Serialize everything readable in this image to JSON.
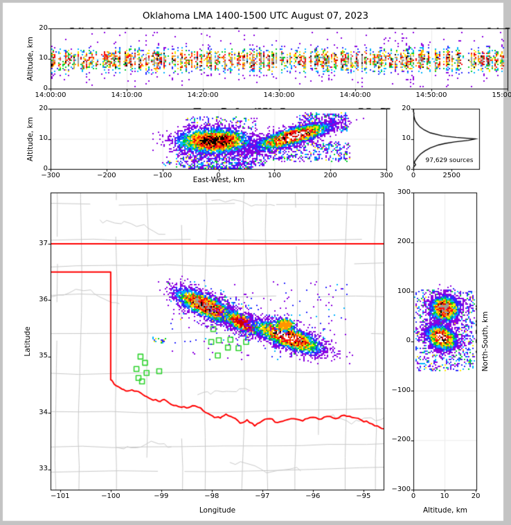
{
  "title": "Oklahoma LMA 1400-1500 UTC August 07, 2023",
  "colors": {
    "background": "#ffffff",
    "page_border": "#c3c3c3",
    "frame": "#000000",
    "grid_line": "#ececec",
    "county_line": "#c9c9c9",
    "state_border": "#ff0000",
    "station_marker": "#2fd32f",
    "histogram_line": "#000000",
    "density_scale": [
      "#8a00e0",
      "#2a2aff",
      "#00b4ff",
      "#00cc29",
      "#ffe900",
      "#ff9500",
      "#ff0f0f",
      "#cf0000",
      "#000000",
      "#9b9b9b",
      "#ffffff"
    ]
  },
  "chart_data": [
    {
      "id": "time-height",
      "type": "scatter",
      "ylabel": "Altitude, km",
      "xlabel": "",
      "xlim": [
        0,
        3600
      ],
      "xtick_values": [
        0,
        600,
        1200,
        1800,
        2400,
        3000,
        3600
      ],
      "xtick_labels": [
        "14:00:00",
        "14:10:00",
        "14:20:00",
        "14:30:00",
        "14:40:00",
        "14:50:00",
        "15:00:00"
      ],
      "ylim": [
        0,
        20
      ],
      "ytick_values": [
        0,
        10,
        20
      ],
      "ytick_labels": [
        "0",
        "10",
        "20"
      ],
      "band": {
        "alt_mean": 9.4,
        "alt_sigma": 1.9,
        "outlier_frac": 0.08,
        "pts_per_col": 26
      }
    },
    {
      "id": "ew-height",
      "type": "scatter",
      "xlabel": "East-West, km",
      "ylabel": "Altitude, km",
      "xlim": [
        -300,
        300
      ],
      "xtick_values": [
        -300,
        -200,
        -100,
        0,
        100,
        200,
        300
      ],
      "xtick_labels": [
        "−300",
        "−200",
        "−100",
        "0",
        "100",
        "200",
        "300"
      ],
      "ylim": [
        0,
        20
      ],
      "ytick_values": [
        0,
        10,
        20
      ],
      "ytick_labels": [
        "0",
        "10",
        "20"
      ],
      "blobs": [
        {
          "cx": -8,
          "cy": 9.3,
          "sx": 33,
          "sy": 2.1,
          "slope": 0,
          "n": 3300,
          "tmax": 0.88
        },
        {
          "cx": 133,
          "cy": 10.8,
          "sx": 34,
          "sy": 1.4,
          "slope": 0.05,
          "n": 3300,
          "tmax": 1.0
        }
      ],
      "clouds": [
        {
          "x0": -75,
          "x1": 85,
          "y0": 0.6,
          "y1": 8,
          "n": 800
        },
        {
          "x0": 85,
          "x1": 235,
          "y0": 2.5,
          "y1": 9,
          "n": 420
        },
        {
          "x0": 140,
          "x1": 232,
          "y0": 12.5,
          "y1": 18.5,
          "n": 330
        },
        {
          "x0": -55,
          "x1": 60,
          "y0": 0.1,
          "y1": 0.6,
          "n": 150
        },
        {
          "x0": -60,
          "x1": 70,
          "y0": 13,
          "y1": 17.5,
          "n": 120
        },
        {
          "x0": -100,
          "x1": -85,
          "y0": 1.2,
          "y1": 2.6,
          "n": 10
        }
      ]
    },
    {
      "id": "altitude-histogram",
      "type": "line",
      "annotation": "97,629 sources",
      "xlim": [
        0,
        4300
      ],
      "xtick_values": [
        0,
        2500
      ],
      "xtick_labels": [
        "0",
        "2500"
      ],
      "ylim": [
        0,
        20
      ],
      "ytick_values": [
        0,
        10,
        20
      ],
      "ytick_labels": [
        "0",
        "10",
        "20"
      ],
      "profile_alt_count": [
        [
          0.2,
          0
        ],
        [
          0.5,
          15
        ],
        [
          0.8,
          40
        ],
        [
          1.1,
          90
        ],
        [
          1.4,
          150
        ],
        [
          1.7,
          120
        ],
        [
          2.0,
          60
        ],
        [
          2.5,
          90
        ],
        [
          3.0,
          160
        ],
        [
          3.5,
          230
        ],
        [
          4,
          290
        ],
        [
          5,
          480
        ],
        [
          6,
          750
        ],
        [
          7,
          1100
        ],
        [
          8,
          1650
        ],
        [
          8.5,
          2100
        ],
        [
          9,
          2700
        ],
        [
          9.5,
          3600
        ],
        [
          10,
          4050
        ],
        [
          10.5,
          2800
        ],
        [
          11,
          1900
        ],
        [
          12,
          1100
        ],
        [
          13,
          700
        ],
        [
          14,
          420
        ],
        [
          15,
          250
        ],
        [
          16,
          120
        ],
        [
          17,
          60
        ],
        [
          18,
          25
        ],
        [
          18.5,
          40
        ],
        [
          19,
          10
        ],
        [
          19.6,
          4
        ],
        [
          20,
          2
        ]
      ]
    },
    {
      "id": "plan-view-map",
      "type": "scatter-map",
      "xlabel": "Longitude",
      "ylabel": "Latitude",
      "xlim": [
        -101.19,
        -94.6
      ],
      "xtick_values": [
        -101,
        -100,
        -99,
        -98,
        -97,
        -96,
        -95
      ],
      "xtick_labels": [
        "−101",
        "−100",
        "−99",
        "−98",
        "−97",
        "−96",
        "−95"
      ],
      "ylim": [
        32.64,
        37.91
      ],
      "ytick_values": [
        33,
        34,
        35,
        36,
        37
      ],
      "ytick_labels": [
        "33",
        "34",
        "35",
        "36",
        "37"
      ],
      "state_border": {
        "north_lat": 37.0,
        "panhandle_lat": 36.5,
        "panhandle_corner_lon": -100.0,
        "corner_south_lat": 34.59
      },
      "river_points": [
        [
          -100.0,
          34.59
        ],
        [
          -99.93,
          34.51
        ],
        [
          -99.82,
          34.45
        ],
        [
          -99.7,
          34.39
        ],
        [
          -99.58,
          34.41
        ],
        [
          -99.45,
          34.38
        ],
        [
          -99.32,
          34.3
        ],
        [
          -99.21,
          34.25
        ],
        [
          -99.06,
          34.21
        ],
        [
          -98.94,
          34.24
        ],
        [
          -98.8,
          34.15
        ],
        [
          -98.65,
          34.11
        ],
        [
          -98.5,
          34.09
        ],
        [
          -98.38,
          34.13
        ],
        [
          -98.22,
          34.09
        ],
        [
          -98.07,
          33.99
        ],
        [
          -97.95,
          33.92
        ],
        [
          -97.83,
          33.91
        ],
        [
          -97.72,
          33.98
        ],
        [
          -97.58,
          33.92
        ],
        [
          -97.44,
          33.82
        ],
        [
          -97.3,
          33.88
        ],
        [
          -97.15,
          33.77
        ],
        [
          -97.0,
          33.86
        ],
        [
          -96.85,
          33.9
        ],
        [
          -96.7,
          33.83
        ],
        [
          -96.55,
          33.87
        ],
        [
          -96.38,
          33.9
        ],
        [
          -96.2,
          33.86
        ],
        [
          -96.05,
          33.92
        ],
        [
          -95.88,
          33.89
        ],
        [
          -95.72,
          33.94
        ],
        [
          -95.55,
          33.9
        ],
        [
          -95.38,
          33.96
        ],
        [
          -95.22,
          33.92
        ],
        [
          -95.05,
          33.88
        ],
        [
          -94.88,
          33.82
        ],
        [
          -94.72,
          33.77
        ],
        [
          -94.6,
          33.72
        ]
      ],
      "stations": [
        [
          -99.41,
          35.0
        ],
        [
          -99.32,
          34.89
        ],
        [
          -99.49,
          34.78
        ],
        [
          -99.29,
          34.71
        ],
        [
          -99.04,
          34.74
        ],
        [
          -99.45,
          34.62
        ],
        [
          -99.38,
          34.56
        ],
        [
          -97.97,
          35.49
        ],
        [
          -97.86,
          35.29
        ],
        [
          -98.01,
          35.26
        ],
        [
          -97.68,
          35.16
        ],
        [
          -97.47,
          35.15
        ],
        [
          -97.88,
          35.02
        ],
        [
          -97.63,
          35.3
        ],
        [
          -97.32,
          35.26
        ]
      ],
      "blobs": [
        {
          "cx": -98.12,
          "cy": 35.9,
          "sx": 0.3,
          "sy": 0.1,
          "slope": -0.38,
          "n": 2500,
          "tmax": 0.92
        },
        {
          "cx": -97.38,
          "cy": 35.6,
          "sx": 0.2,
          "sy": 0.08,
          "slope": -0.35,
          "n": 800,
          "tmax": 0.8
        },
        {
          "cx": -96.5,
          "cy": 35.35,
          "sx": 0.34,
          "sy": 0.1,
          "slope": -0.3,
          "n": 3000,
          "tmax": 1.0
        },
        {
          "cx": -96.55,
          "cy": 35.56,
          "sx": 0.11,
          "sy": 0.06,
          "slope": 0,
          "n": 300,
          "tmax": 0.55
        }
      ],
      "band_path": [
        [
          -98.55,
          36.08
        ],
        [
          -97.75,
          35.8
        ],
        [
          -97.3,
          35.55
        ],
        [
          -96.1,
          35.28
        ]
      ],
      "band_n": 1200,
      "clouds": [
        {
          "x0": -98.8,
          "x1": -95.3,
          "y0": 34.95,
          "y1": 36.35,
          "n": 220
        }
      ],
      "specks": [
        {
          "cx": -99.14,
          "cy": 35.3,
          "n": 9
        },
        {
          "cx": -98.96,
          "cy": 35.27,
          "n": 11
        }
      ]
    },
    {
      "id": "ns-height",
      "type": "scatter",
      "xlabel": "Altitude, km",
      "ylabel": "North-South, km",
      "xlim": [
        0,
        20.2
      ],
      "xtick_values": [
        0,
        10,
        20
      ],
      "xtick_labels": [
        "0",
        "10",
        "20"
      ],
      "ylim": [
        -300,
        300
      ],
      "ytick_values": [
        -300,
        -200,
        -100,
        0,
        100,
        200,
        300
      ],
      "ytick_labels": [
        "−300",
        "−200",
        "−100",
        "0",
        "100",
        "200",
        "300"
      ],
      "blobs": [
        {
          "cx": 10,
          "cy": 65,
          "sx": 2.3,
          "sy": 13,
          "slope": 0,
          "n": 2600,
          "tmax": 0.93
        },
        {
          "cx": 9,
          "cy": 7,
          "sx": 2.4,
          "sy": 12,
          "slope": -1.5,
          "n": 3000,
          "tmax": 1.0
        }
      ],
      "clouds": [
        {
          "x0": 0.5,
          "x1": 19.5,
          "y0": -60,
          "y1": 105,
          "n": 850
        }
      ]
    }
  ]
}
